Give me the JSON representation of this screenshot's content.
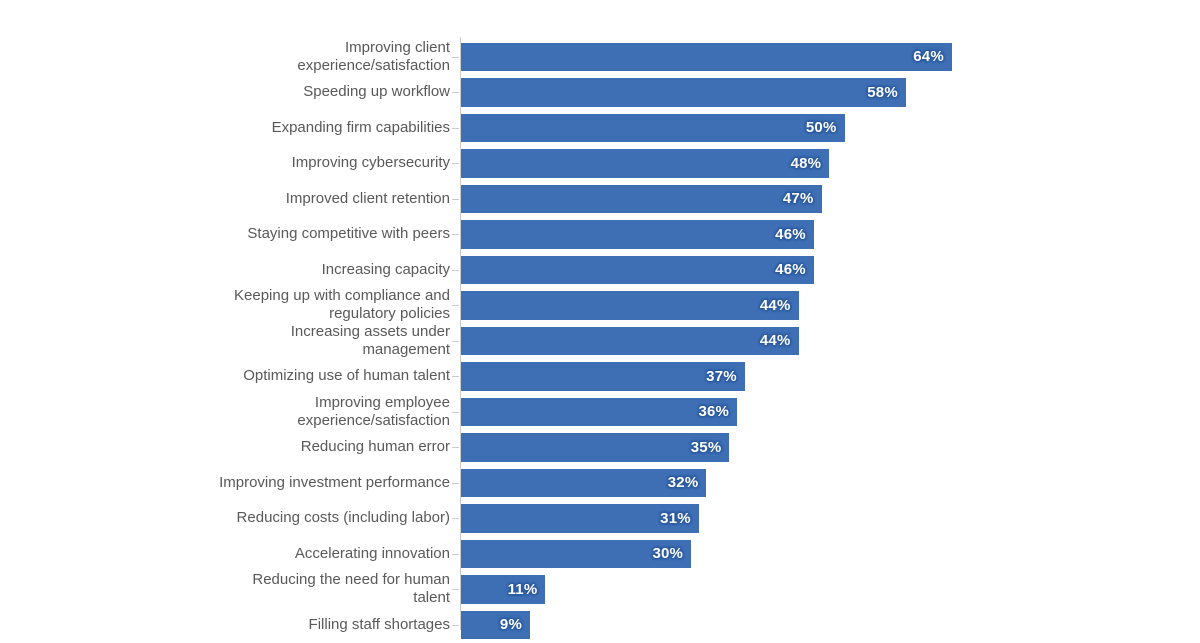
{
  "chart_data": {
    "type": "bar",
    "orientation": "horizontal",
    "title": "",
    "xlabel": "",
    "ylabel": "",
    "xlim": [
      0,
      96
    ],
    "grid": false,
    "legend": "none",
    "value_suffix": "%",
    "categories": [
      "Improving client\nexperience/satisfaction",
      "Speeding up workflow",
      "Expanding firm capabilities",
      "Improving cybersecurity",
      "Improved client retention",
      "Staying competitive with peers",
      "Increasing capacity",
      "Keeping up with compliance and\nregulatory policies",
      "Increasing assets under\nmanagement",
      "Optimizing use of human talent",
      "Improving employee\nexperience/satisfaction",
      "Reducing human error",
      "Improving investment performance",
      "Reducing costs (including labor)",
      "Accelerating innovation",
      "Reducing the need for human\ntalent",
      "Filling staff shortages"
    ],
    "values": [
      64,
      58,
      50,
      48,
      47,
      46,
      46,
      44,
      44,
      37,
      36,
      35,
      32,
      31,
      30,
      11,
      9
    ],
    "display_values": [
      "64%",
      "58%",
      "50%",
      "48%",
      "47%",
      "46%",
      "46%",
      "44%",
      "44%",
      "37%",
      "36%",
      "35%",
      "32%",
      "31%",
      "30%",
      "11%",
      "9%"
    ],
    "colors": {
      "bar": "#3e6eb4",
      "value_text": "#ffffff",
      "value_halo": "#2b5a9e",
      "category_text": "#595959",
      "axis": "#cccccc",
      "background": "#ffffff"
    }
  }
}
